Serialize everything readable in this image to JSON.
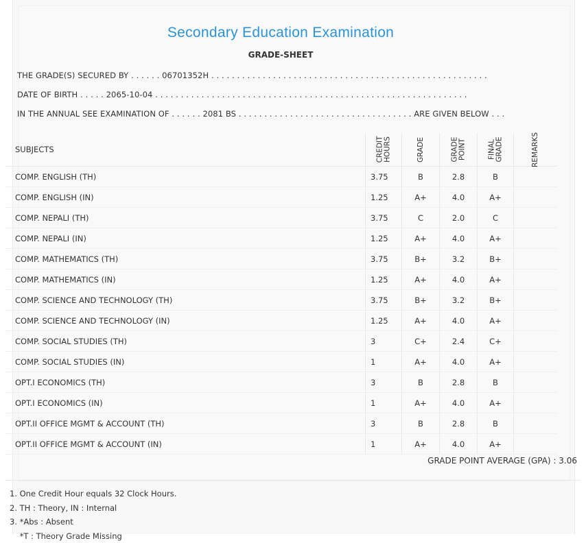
{
  "title": "Secondary Education Examination",
  "subtitle": "GRADE-SHEET",
  "info": {
    "line1": "THE GRADE(S) SECURED BY . . . . . . 06701352H . . . . . . . . . . . . . . . . . . . . . . . . . . . . . . . . . . . . . . . . . . . . . . . . . . . . . .",
    "line2": "DATE OF BIRTH . . . . . 2065-10-04 . . . . . . . . . . . . . . . . . . . . . . . . . . . . . . . . . . . . . . . . . . . . . . . . . . . . . . . . . . . . .",
    "line3": "IN THE ANNUAL SEE EXAMINATION OF . . . . . . 2081 BS . . . . . . . . . . . . . . . . . . . . . . . . . . . . . . . . . . ARE GIVEN BELOW . . ."
  },
  "table": {
    "headers": {
      "subjects": "SUBJECTS",
      "credit_hours": "CREDIT\nHOURS",
      "grade": "GRADE",
      "grade_point": "GRADE\nPOINT",
      "final_grade": "FINAL\nGRADE",
      "remarks": "REMARKS"
    },
    "rows": [
      {
        "subject": "COMP. ENGLISH (TH)",
        "credit": "3.75",
        "grade": "B",
        "point": "2.8",
        "final": "B",
        "remarks": ""
      },
      {
        "subject": "COMP. ENGLISH (IN)",
        "credit": "1.25",
        "grade": "A+",
        "point": "4.0",
        "final": "A+",
        "remarks": ""
      },
      {
        "subject": "COMP. NEPALI (TH)",
        "credit": "3.75",
        "grade": "C",
        "point": "2.0",
        "final": "C",
        "remarks": ""
      },
      {
        "subject": "COMP. NEPALI (IN)",
        "credit": "1.25",
        "grade": "A+",
        "point": "4.0",
        "final": "A+",
        "remarks": ""
      },
      {
        "subject": "COMP. MATHEMATICS (TH)",
        "credit": "3.75",
        "grade": "B+",
        "point": "3.2",
        "final": "B+",
        "remarks": ""
      },
      {
        "subject": "COMP. MATHEMATICS (IN)",
        "credit": "1.25",
        "grade": "A+",
        "point": "4.0",
        "final": "A+",
        "remarks": ""
      },
      {
        "subject": "COMP. SCIENCE AND TECHNOLOGY (TH)",
        "credit": "3.75",
        "grade": "B+",
        "point": "3.2",
        "final": "B+",
        "remarks": ""
      },
      {
        "subject": "COMP. SCIENCE AND TECHNOLOGY (IN)",
        "credit": "1.25",
        "grade": "A+",
        "point": "4.0",
        "final": "A+",
        "remarks": ""
      },
      {
        "subject": "COMP. SOCIAL STUDIES (TH)",
        "credit": "3",
        "grade": "C+",
        "point": "2.4",
        "final": "C+",
        "remarks": ""
      },
      {
        "subject": "COMP. SOCIAL STUDIES (IN)",
        "credit": "1",
        "grade": "A+",
        "point": "4.0",
        "final": "A+",
        "remarks": ""
      },
      {
        "subject": "OPT.I ECONOMICS (TH)",
        "credit": "3",
        "grade": "B",
        "point": "2.8",
        "final": "B",
        "remarks": ""
      },
      {
        "subject": "OPT.I ECONOMICS (IN)",
        "credit": "1",
        "grade": "A+",
        "point": "4.0",
        "final": "A+",
        "remarks": ""
      },
      {
        "subject": "OPT.II OFFICE MGMT & ACCOUNT (TH)",
        "credit": "3",
        "grade": "B",
        "point": "2.8",
        "final": "B",
        "remarks": ""
      },
      {
        "subject": "OPT.II OFFICE MGMT & ACCOUNT (IN)",
        "credit": "1",
        "grade": "A+",
        "point": "4.0",
        "final": "A+",
        "remarks": ""
      }
    ]
  },
  "gpa_text": "GRADE POINT AVERAGE (GPA) : 3.06",
  "notes": [
    "1. One Credit Hour equals 32 Clock Hours.",
    "2. TH : Theory, IN : Internal",
    "3. *Abs : Absent",
    "    *T : Theory Grade Missing"
  ]
}
